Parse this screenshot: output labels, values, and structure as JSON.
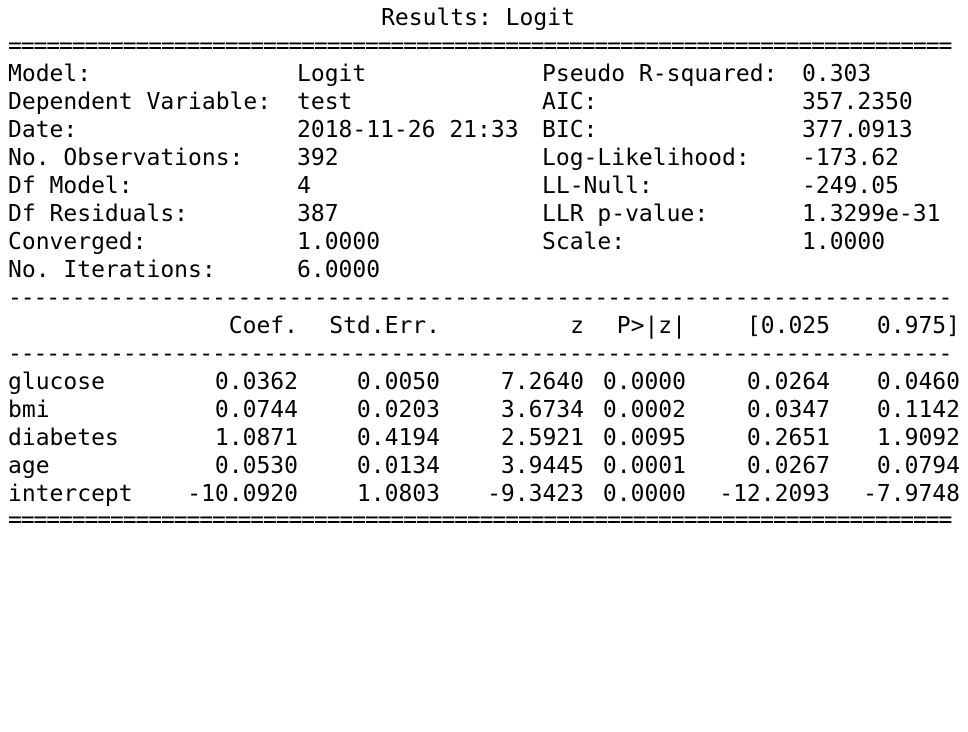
{
  "title": "Results: Logit",
  "rules": {
    "double": "==========================================================================",
    "single": "--------------------------------------------------------------------------"
  },
  "info": [
    {
      "label1": "Model:",
      "value1": "Logit",
      "label2": "Pseudo R-squared:",
      "value2": "0.303"
    },
    {
      "label1": "Dependent Variable:",
      "value1": "test",
      "label2": "AIC:",
      "value2": "357.2350"
    },
    {
      "label1": "Date:",
      "value1": "2018-11-26 21:33",
      "label2": "BIC:",
      "value2": "377.0913"
    },
    {
      "label1": "No. Observations:",
      "value1": "392",
      "label2": "Log-Likelihood:",
      "value2": "-173.62"
    },
    {
      "label1": "Df Model:",
      "value1": "4",
      "label2": "LL-Null:",
      "value2": "-249.05"
    },
    {
      "label1": "Df Residuals:",
      "value1": "387",
      "label2": "LLR p-value:",
      "value2": "1.3299e-31"
    },
    {
      "label1": "Converged:",
      "value1": "1.0000",
      "label2": "Scale:",
      "value2": "1.0000"
    },
    {
      "label1": "No. Iterations:",
      "value1": "6.0000",
      "label2": "",
      "value2": ""
    }
  ],
  "coef_table": {
    "headers": [
      "Coef.",
      "Std.Err.",
      "z",
      "P>|z|",
      "[0.025",
      "0.975]"
    ],
    "rows": [
      {
        "name": "glucose",
        "values": [
          "0.0362",
          "0.0050",
          "7.2640",
          "0.0000",
          "0.0264",
          "0.0460"
        ]
      },
      {
        "name": "bmi",
        "values": [
          "0.0744",
          "0.0203",
          "3.6734",
          "0.0002",
          "0.0347",
          "0.1142"
        ]
      },
      {
        "name": "diabetes",
        "values": [
          "1.0871",
          "0.4194",
          "2.5921",
          "0.0095",
          "0.2651",
          "1.9092"
        ]
      },
      {
        "name": "age",
        "values": [
          "0.0530",
          "0.0134",
          "3.9445",
          "0.0001",
          "0.0267",
          "0.0794"
        ]
      },
      {
        "name": "intercept",
        "values": [
          "-10.0920",
          "1.0803",
          "-9.3423",
          "0.0000",
          "-12.2093",
          "-7.9748"
        ]
      }
    ]
  }
}
